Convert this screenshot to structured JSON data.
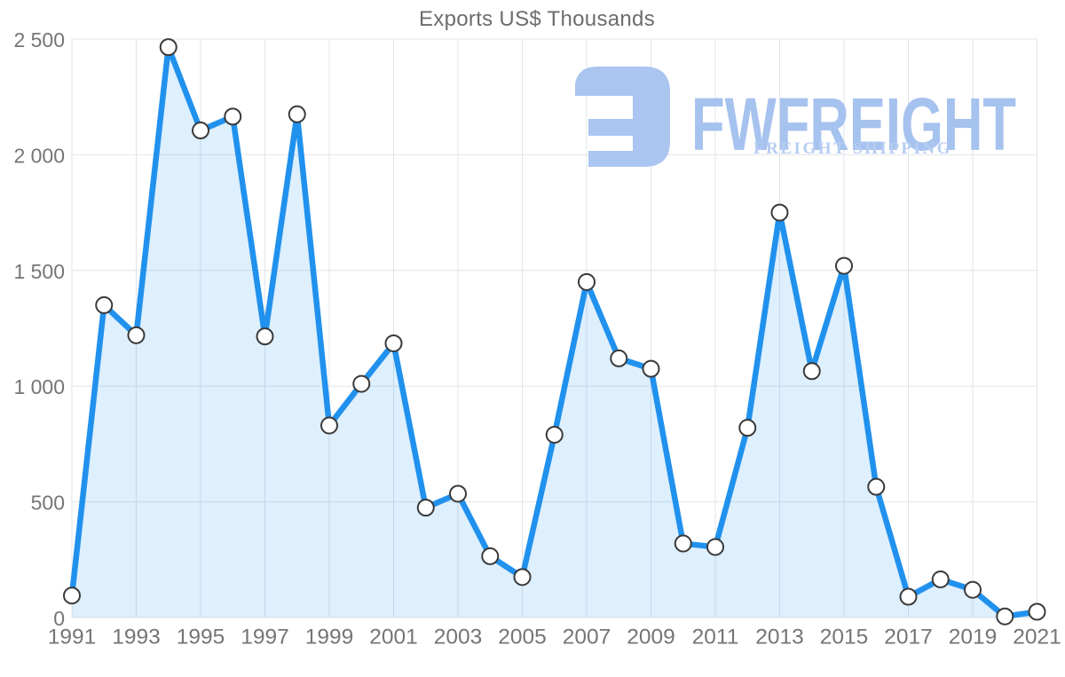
{
  "title": "Exports US$ Thousands",
  "watermark": {
    "name": "FWFREIGHT",
    "tagline": "FREIGHT SHIPPING",
    "logo_color": "#aac5f0",
    "name_color": "#a6c2ee",
    "tagline_color": "#b6cdf3"
  },
  "chart_data": {
    "type": "area",
    "title": "Exports US$ Thousands",
    "series_name": "Exports",
    "x": [
      1991,
      1992,
      1993,
      1994,
      1995,
      1996,
      1997,
      1998,
      1999,
      2000,
      2001,
      2002,
      2003,
      2004,
      2005,
      2006,
      2007,
      2008,
      2009,
      2010,
      2011,
      2012,
      2013,
      2014,
      2015,
      2016,
      2017,
      2018,
      2019,
      2020,
      2021
    ],
    "values": [
      95,
      1350,
      1220,
      2465,
      2105,
      2165,
      1215,
      2175,
      830,
      1010,
      1185,
      475,
      535,
      265,
      175,
      790,
      1450,
      1120,
      1075,
      320,
      305,
      820,
      1750,
      1065,
      1520,
      565,
      90,
      165,
      120,
      5,
      25
    ],
    "ylim": [
      0,
      2500
    ],
    "ytick_interval": 500,
    "ytick_labels": [
      "0",
      "500",
      "1 000",
      "1 500",
      "2 000",
      "2 500"
    ],
    "xtick_years": [
      1991,
      1993,
      1995,
      1997,
      1999,
      2001,
      2003,
      2005,
      2007,
      2009,
      2011,
      2013,
      2015,
      2017,
      2019,
      2021
    ],
    "grid": true,
    "legend_position": "none",
    "colors": {
      "line": "#2191ee",
      "fill": "rgba(33,150,243,0.15)",
      "marker_fill": "#ffffff",
      "marker_stroke": "#3a3a3a",
      "grid_h": "#e4e4e4",
      "grid_v": "#dfe4ea",
      "tick_text": "#757575",
      "title_text": "#6d6d6d"
    }
  }
}
